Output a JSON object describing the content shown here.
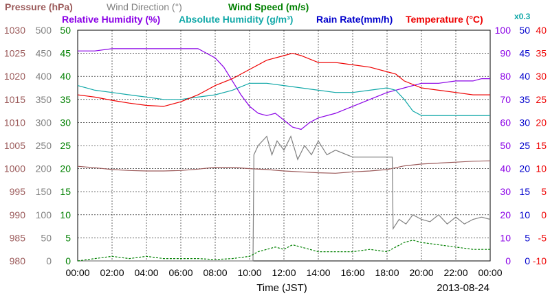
{
  "chart_data": {
    "type": "line",
    "date": "2013-08-24",
    "xlabel": "Time (JST)",
    "x_ticks": [
      "00:00",
      "02:00",
      "04:00",
      "06:00",
      "08:00",
      "10:00",
      "12:00",
      "14:00",
      "16:00",
      "18:00",
      "20:00",
      "22:00",
      "00:00"
    ],
    "x_hours": [
      0,
      24
    ],
    "grid": true,
    "legend_top": [
      {
        "text": "Pressure (hPa)",
        "color": "#9b5a5a"
      },
      {
        "text": "Wind Direction (°)",
        "color": "#808080"
      },
      {
        "text": "Wind Speed (m/s)",
        "color": "#008000"
      }
    ],
    "legend_bottom": [
      {
        "text": "Relative Humidity (%)",
        "color": "#8a00e6"
      },
      {
        "text": "Absolute Humidity (g/m³)",
        "color": "#11a8a8"
      },
      {
        "text": "Rain Rate(mm/h)",
        "color": "#0000cc"
      },
      {
        "text": "Temperature (°C)",
        "color": "#ee0000"
      }
    ],
    "scale_note": {
      "text": "x0.3",
      "color": "#11a8a8"
    },
    "axes": [
      {
        "name": "pressure",
        "color": "#9b5a5a",
        "ticks": [
          "980",
          "985",
          "990",
          "995",
          "1000",
          "1005",
          "1010",
          "1015",
          "1020",
          "1025",
          "1030"
        ]
      },
      {
        "name": "wind_direction",
        "color": "#808080",
        "ticks": [
          "0",
          "50",
          "100",
          "150",
          "200",
          "250",
          "300",
          "350",
          "400",
          "450",
          "500"
        ]
      },
      {
        "name": "wind_speed",
        "color": "#008000",
        "ticks": [
          "0",
          "5",
          "10",
          "15",
          "20",
          "25",
          "30",
          "35",
          "40",
          "45",
          "50"
        ]
      },
      {
        "name": "humidity",
        "color": "#8a00e6",
        "ticks": [
          "0",
          "10",
          "20",
          "30",
          "40",
          "50",
          "60",
          "70",
          "80",
          "90",
          "100"
        ]
      },
      {
        "name": "rain_rate",
        "color": "#0000cc",
        "ticks": [
          "0",
          "5",
          "10",
          "15",
          "20",
          "25",
          "30",
          "35",
          "40",
          "45",
          "50"
        ]
      },
      {
        "name": "temperature",
        "color": "#ee0000",
        "ticks": [
          "-10",
          "-5",
          "0",
          "5",
          "10",
          "15",
          "20",
          "25",
          "30",
          "35",
          "40"
        ]
      }
    ],
    "series": [
      {
        "name": "Pressure (hPa)",
        "axis": "pressure",
        "color": "#9b5a5a",
        "range": [
          980,
          1030
        ],
        "x": [
          0,
          1,
          2,
          3,
          4,
          5,
          6,
          7,
          8,
          9,
          10,
          11,
          12,
          13,
          14,
          15,
          16,
          17,
          18,
          19,
          20,
          21,
          22,
          23,
          24
        ],
        "y": [
          1000.5,
          1000.2,
          999.8,
          999.6,
          999.5,
          999.5,
          999.6,
          999.9,
          1000.3,
          1000.3,
          1000.0,
          999.8,
          999.5,
          999.3,
          999.1,
          999.0,
          999.3,
          999.5,
          999.8,
          1000.6,
          1001.0,
          1001.2,
          1001.4,
          1001.6,
          1001.7
        ]
      },
      {
        "name": "Relative Humidity (%)",
        "axis": "humidity",
        "color": "#8a00e6",
        "range": [
          0,
          100
        ],
        "x": [
          0,
          1,
          2,
          3,
          4,
          5,
          6,
          7,
          7.5,
          8,
          8.5,
          9,
          9.5,
          10,
          10.5,
          11,
          11.5,
          12,
          12.5,
          13,
          13.5,
          14,
          15,
          16,
          17,
          18,
          18.5,
          19,
          20,
          21,
          22,
          23,
          23.5,
          24
        ],
        "y": [
          91,
          91,
          92,
          92,
          92,
          92,
          92,
          92,
          90,
          88,
          84,
          78,
          72,
          67,
          64,
          63,
          64,
          61,
          58,
          57,
          60,
          62,
          64,
          67,
          70,
          73,
          74,
          75,
          77,
          77,
          78,
          78,
          79,
          79
        ]
      },
      {
        "name": "Absolute Humidity (g/m³)",
        "axis": "humidity",
        "color": "#11a8a8",
        "range": [
          0,
          100
        ],
        "x": [
          0,
          1,
          2,
          3,
          4,
          5,
          6,
          7,
          8,
          9,
          10,
          11,
          12,
          13,
          14,
          15,
          16,
          17,
          18,
          18.5,
          19,
          19.5,
          20,
          21,
          22,
          23,
          24
        ],
        "y": [
          76,
          74,
          73,
          72,
          71,
          70,
          70,
          71,
          72,
          74,
          77,
          77,
          76,
          75,
          74,
          73,
          73,
          74,
          75,
          74,
          70,
          65,
          63,
          63,
          63,
          63,
          63
        ]
      },
      {
        "name": "Temperature (°C)",
        "axis": "temperature",
        "color": "#ee0000",
        "range": [
          -10,
          40
        ],
        "x": [
          0,
          1,
          2,
          3,
          4,
          5,
          6,
          7,
          8,
          9,
          10,
          11,
          12,
          12.5,
          13,
          14,
          15,
          16,
          17,
          18,
          18.5,
          19,
          20,
          21,
          22,
          23,
          24
        ],
        "y": [
          26,
          25.5,
          24.8,
          24.2,
          23.7,
          23.5,
          24.5,
          26,
          28,
          29.5,
          31.5,
          33.5,
          34.5,
          35,
          34.5,
          33,
          33,
          32.5,
          32,
          31,
          30.5,
          29,
          27.5,
          27,
          26.5,
          26,
          26
        ]
      },
      {
        "name": "Wind Direction (°)",
        "axis": "wind_direction",
        "color": "#808080",
        "range": [
          0,
          500
        ],
        "x": [
          0,
          10.2,
          10.25,
          10.5,
          11,
          11.3,
          11.6,
          12,
          12.4,
          12.8,
          13.2,
          13.6,
          14,
          14.5,
          15,
          16,
          17,
          18,
          18.3,
          18.35,
          18.7,
          19.1,
          19.5,
          20,
          20.5,
          21,
          21.5,
          22,
          22.5,
          23,
          23.5,
          24
        ],
        "y": [
          0,
          0,
          230,
          250,
          270,
          230,
          260,
          240,
          270,
          220,
          250,
          230,
          260,
          230,
          240,
          225,
          225,
          225,
          225,
          70,
          90,
          80,
          100,
          90,
          85,
          100,
          80,
          95,
          80,
          90,
          95,
          90
        ]
      },
      {
        "name": "Wind Speed (m/s)",
        "axis": "wind_speed",
        "color": "#008000",
        "range": [
          0,
          50
        ],
        "x": [
          0,
          1,
          2,
          3,
          4,
          5,
          6,
          7,
          8,
          9,
          10,
          10.5,
          11,
          11.5,
          12,
          12.5,
          13,
          13.5,
          14,
          15,
          16,
          17,
          18,
          18.5,
          19,
          19.5,
          20,
          21,
          22,
          23,
          24
        ],
        "y": [
          0,
          0.5,
          1,
          0.5,
          1,
          0.5,
          0.5,
          0.5,
          0.3,
          0.5,
          1,
          2,
          2.5,
          3,
          2.5,
          3.5,
          3,
          2.5,
          2,
          2,
          2,
          2.5,
          2,
          3,
          4,
          4.5,
          4,
          3.5,
          3,
          2.5,
          2.5
        ]
      }
    ]
  }
}
